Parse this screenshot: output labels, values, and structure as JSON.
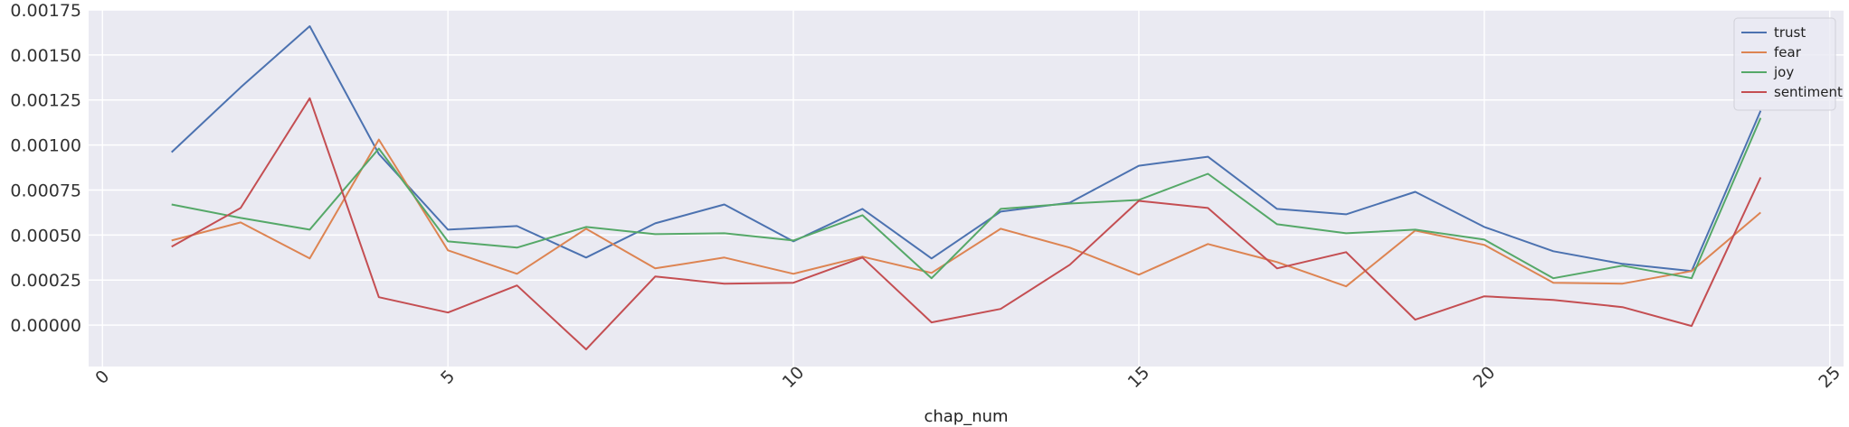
{
  "chart_data": {
    "type": "line",
    "title": "",
    "xlabel": "chap_num",
    "ylabel": "",
    "xlim": [
      -0.2,
      25.2
    ],
    "ylim": [
      -0.00023,
      0.00175
    ],
    "xticks": [
      0,
      5,
      10,
      15,
      20,
      25
    ],
    "xtick_labels": [
      "0",
      "5",
      "10",
      "15",
      "20",
      "25"
    ],
    "yticks": [
      0,
      0.00025,
      0.0005,
      0.00075,
      0.001,
      0.00125,
      0.0015,
      0.00175
    ],
    "ytick_labels": [
      "0.00000",
      "0.00025",
      "0.00050",
      "0.00075",
      "0.00100",
      "0.00125",
      "0.00150",
      "0.00175"
    ],
    "grid": true,
    "legend_position": "top-right",
    "x": [
      1,
      2,
      3,
      4,
      5,
      6,
      7,
      8,
      9,
      10,
      11,
      12,
      13,
      14,
      15,
      16,
      17,
      18,
      19,
      20,
      21,
      22,
      23,
      24
    ],
    "series": [
      {
        "name": "trust",
        "color": "#4c72b0",
        "values": [
          0.00096,
          0.00132,
          0.00166,
          0.00095,
          0.00053,
          0.00055,
          0.000375,
          0.000565,
          0.00067,
          0.000465,
          0.000645,
          0.00037,
          0.00063,
          0.00068,
          0.000885,
          0.000935,
          0.000645,
          0.000615,
          0.00074,
          0.000545,
          0.00041,
          0.00034,
          0.0003,
          0.00119
        ]
      },
      {
        "name": "fear",
        "color": "#dd8452",
        "values": [
          0.00047,
          0.00057,
          0.00037,
          0.00103,
          0.000415,
          0.000285,
          0.000535,
          0.000315,
          0.000375,
          0.000285,
          0.00038,
          0.00029,
          0.000535,
          0.00043,
          0.00028,
          0.00045,
          0.00035,
          0.000215,
          0.000525,
          0.000445,
          0.000235,
          0.00023,
          0.0003,
          0.000625
        ]
      },
      {
        "name": "joy",
        "color": "#55a868",
        "values": [
          0.00067,
          0.000595,
          0.00053,
          0.00098,
          0.000465,
          0.00043,
          0.000545,
          0.000505,
          0.00051,
          0.00047,
          0.00061,
          0.00026,
          0.000645,
          0.000675,
          0.000695,
          0.00084,
          0.00056,
          0.00051,
          0.00053,
          0.000475,
          0.00026,
          0.00033,
          0.00026,
          0.00115
        ]
      },
      {
        "name": "sentiment",
        "color": "#c44e52",
        "values": [
          0.000435,
          0.00065,
          0.00126,
          0.000155,
          7e-05,
          0.00022,
          -0.000135,
          0.00027,
          0.00023,
          0.000235,
          0.000375,
          1.5e-05,
          9e-05,
          0.000335,
          0.00069,
          0.00065,
          0.000315,
          0.000405,
          3e-05,
          0.00016,
          0.00014,
          0.0001,
          -5e-06,
          0.00082
        ]
      }
    ]
  }
}
